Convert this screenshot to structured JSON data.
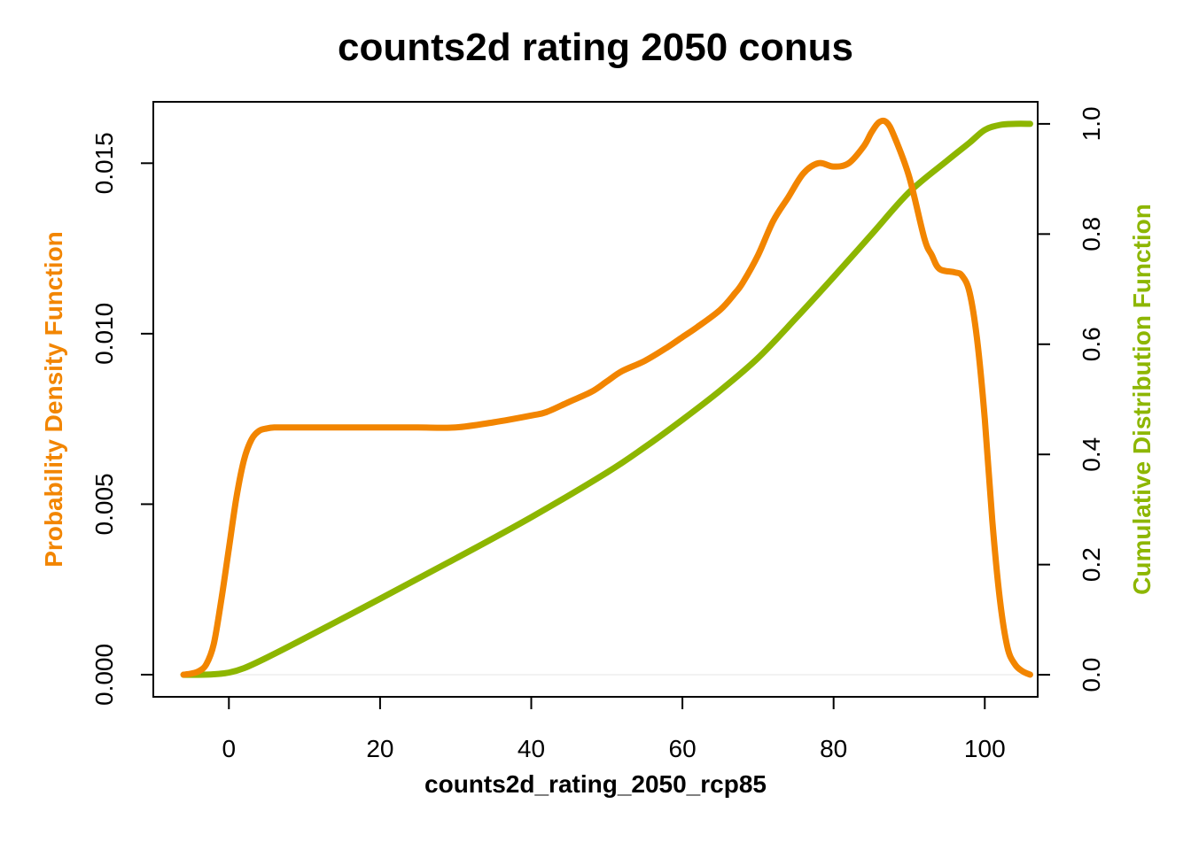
{
  "chart_data": {
    "type": "line",
    "title": "counts2d rating 2050 conus",
    "xlabel": "counts2d_rating_2050_rcp85",
    "ylabel_left": "Probability Density Function",
    "ylabel_right": "Cumulative Distribution Function",
    "xlim": [
      -10,
      107
    ],
    "ylim_left": [
      -0.00065,
      0.0168
    ],
    "ylim_right": [
      -0.04,
      1.04
    ],
    "x_ticks": [
      "0",
      "20",
      "40",
      "60",
      "80",
      "100"
    ],
    "y_left_ticks": [
      "0.000",
      "0.005",
      "0.010",
      "0.015"
    ],
    "y_right_ticks": [
      "0.0",
      "0.2",
      "0.4",
      "0.6",
      "0.8",
      "1.0"
    ],
    "grid": false,
    "colors": {
      "pdf": "#F28500",
      "cdf": "#8DB600",
      "baseline": "#eeeeee"
    },
    "series": [
      {
        "name": "Probability Density Function",
        "axis": "left",
        "x": [
          -6,
          -5,
          -4,
          -3,
          -2,
          -1,
          0,
          1,
          2,
          3,
          4,
          5,
          6,
          8,
          10,
          15,
          20,
          25,
          30,
          35,
          40,
          42,
          45,
          48,
          50,
          52,
          55,
          58,
          60,
          62,
          65,
          67,
          68,
          70,
          72,
          74,
          76,
          78,
          80,
          82,
          84,
          85,
          86,
          87,
          88,
          90,
          92,
          93,
          94,
          96,
          97,
          98,
          99,
          100,
          101,
          102,
          103,
          104,
          105,
          106
        ],
        "values": [
          0.0,
          3e-05,
          0.0001,
          0.0003,
          0.0009,
          0.0022,
          0.0037,
          0.0052,
          0.0063,
          0.0069,
          0.00715,
          0.00722,
          0.00725,
          0.00725,
          0.00725,
          0.00725,
          0.00725,
          0.00725,
          0.00725,
          0.0074,
          0.0076,
          0.0077,
          0.008,
          0.0083,
          0.0086,
          0.0089,
          0.0092,
          0.0096,
          0.0099,
          0.0102,
          0.0107,
          0.0112,
          0.0115,
          0.0123,
          0.0133,
          0.014,
          0.0147,
          0.015,
          0.0149,
          0.015,
          0.0155,
          0.0159,
          0.0162,
          0.0162,
          0.0158,
          0.0146,
          0.0128,
          0.0123,
          0.0119,
          0.0118,
          0.0117,
          0.0112,
          0.0098,
          0.0075,
          0.0045,
          0.0022,
          0.0008,
          0.0003,
          0.0001,
          0.0
        ]
      },
      {
        "name": "Cumulative Distribution Function",
        "axis": "right",
        "x": [
          -6,
          -4,
          -2,
          0,
          2,
          5,
          10,
          20,
          30,
          40,
          50,
          55,
          60,
          65,
          70,
          75,
          80,
          85,
          90,
          95,
          98,
          100,
          102,
          104,
          106
        ],
        "values": [
          0.0,
          0.0,
          0.001,
          0.004,
          0.012,
          0.031,
          0.066,
          0.138,
          0.211,
          0.286,
          0.367,
          0.413,
          0.463,
          0.516,
          0.575,
          0.647,
          0.722,
          0.799,
          0.876,
          0.933,
          0.966,
          0.989,
          0.998,
          1.0,
          1.0
        ]
      }
    ]
  }
}
